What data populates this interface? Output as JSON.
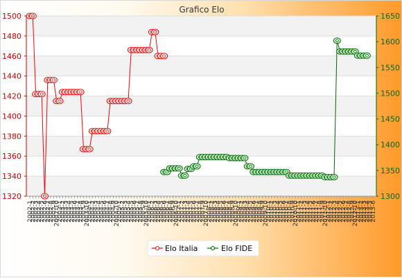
{
  "chart_data": {
    "type": "line",
    "title": "Grafico Elo",
    "grid": true,
    "legend_position": "bottom-center",
    "y_left": {
      "range": [
        1320,
        1500
      ],
      "ticks": [
        1320,
        1340,
        1360,
        1380,
        1400,
        1420,
        1440,
        1460,
        1480,
        1500
      ]
    },
    "y_right": {
      "range": [
        1300,
        1650
      ],
      "ticks": [
        1300,
        1350,
        1400,
        1450,
        1500,
        1550,
        1600,
        1650
      ]
    },
    "x_tick_labels": [
      "2002-1",
      "2002-2",
      "2002-3",
      "2002-4",
      "2002-5",
      "2002-6",
      "2002-7",
      "2002-8",
      "2002-9",
      "2002-10",
      "2003-1",
      "2003-2",
      "2003-3",
      "2003-4",
      "2003-5",
      "2003-6",
      "2003-7",
      "2003-8",
      "2003-9",
      "2003-10",
      "2004-1",
      "2004-2",
      "2004-3",
      "2004-4",
      "2004-5",
      "2004-6",
      "2004-7",
      "2004-8",
      "2004-9",
      "2004-10",
      "2005-1",
      "2005-2",
      "2005-3",
      "2005-4",
      "2005-5",
      "2005-6",
      "2005-7",
      "2005-8",
      "2005-9",
      "2005-10",
      "2006-1",
      "2006-2",
      "2006-3",
      "2006-4",
      "2006-5",
      "2006-6",
      "2006-7",
      "2006-8",
      "2006-9",
      "2006-10",
      "2007-1",
      "2007-2",
      "2007-3",
      "2007-4",
      "2007-5",
      "2007-6",
      "2007-7",
      "2007-8",
      "2007-9",
      "2007-10",
      "2008-1",
      "2008-2",
      "2008-3",
      "2008-4",
      "2008-5",
      "2008-6",
      "2008-7",
      "2008-8",
      "2008-9",
      "2008-10",
      "2009-1",
      "2009-2",
      "2009-3",
      "2009-4",
      "2009-5",
      "2009-6",
      "2009-7",
      "2009-8",
      "2009-9",
      "2009-10",
      "2010-1",
      "2010-2",
      "2010-3",
      "2010-4",
      "2010-5",
      "2010-6",
      "2010-7",
      "2010-8",
      "2010-9",
      "2010-10",
      "2011-1",
      "2011-2",
      "2011-3",
      "2011-4",
      "2011-5",
      "2011-6",
      "2011-7",
      "2011-8",
      "2011-9",
      "2011-10",
      "2012-1",
      "2012-2",
      "2012-3",
      "2012-4",
      "2012-5",
      "2012-6",
      "2012-7",
      "2012-8",
      "2012-9",
      "2012-10",
      "2013-1",
      "2013-2",
      "2013-3",
      "2013-4",
      "2013-5",
      "2013-6"
    ],
    "series": [
      {
        "name": "Elo Italia",
        "axis": "left",
        "color": "#ff0000",
        "marker_fill": "#ffffff",
        "values": [
          1500,
          1500,
          1422,
          1422,
          1422,
          1320,
          1436,
          1436,
          1436,
          1415,
          1415,
          1424,
          1424,
          1424,
          1424,
          1424,
          1424,
          1424,
          1367,
          1367,
          1367,
          1385,
          1385,
          1385,
          1385,
          1385,
          1385,
          1415,
          1415,
          1415,
          1415,
          1415,
          1415,
          1415,
          1466,
          1466,
          1466,
          1466,
          1466,
          1466,
          1466,
          1484,
          1484,
          1460,
          1460,
          1460
        ]
      },
      {
        "name": "Elo FIDE",
        "axis": "right",
        "offset": 45,
        "color": "#006600",
        "marker_fill": "#d8ffd8",
        "values": [
          1347,
          1347,
          1354,
          1354,
          1354,
          1354,
          1340,
          1340,
          1353,
          1353,
          1358,
          1358,
          1376,
          1376,
          1376,
          1376,
          1376,
          1376,
          1376,
          1376,
          1376,
          1376,
          1374,
          1374,
          1374,
          1374,
          1374,
          1374,
          1358,
          1358,
          1347,
          1347,
          1347,
          1347,
          1347,
          1347,
          1347,
          1347,
          1347,
          1347,
          1347,
          1347,
          1340,
          1340,
          1340,
          1340,
          1340,
          1340,
          1340,
          1340,
          1340,
          1340,
          1340,
          1340,
          1337,
          1337,
          1337,
          1337,
          1602,
          1581,
          1581,
          1581,
          1581,
          1581,
          1581,
          1573,
          1573,
          1573,
          1573
        ]
      }
    ]
  },
  "legend": {
    "items": [
      {
        "label": "Elo Italia",
        "color": "#ff0000"
      },
      {
        "label": "Elo FIDE",
        "color": "#006600"
      }
    ]
  }
}
